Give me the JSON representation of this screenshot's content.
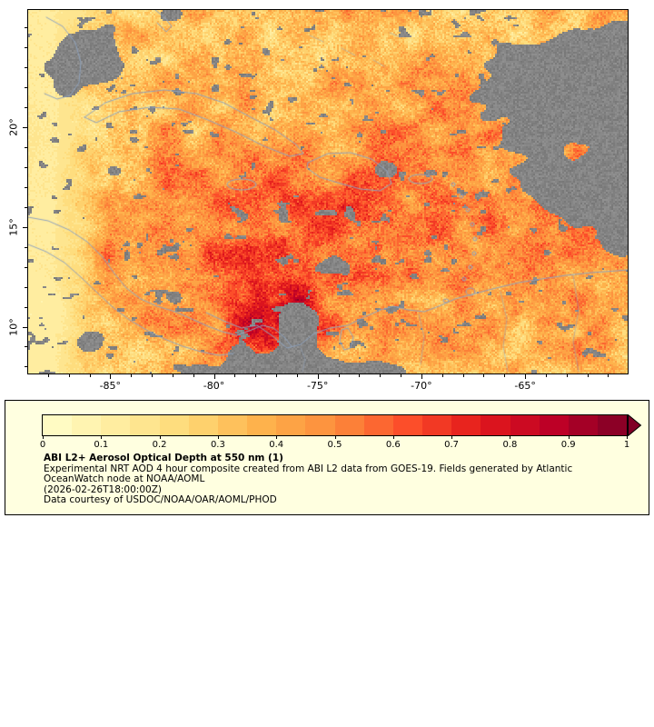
{
  "map": {
    "lat_ticks": [
      {
        "label": "20°",
        "lat": 20
      },
      {
        "label": "15°",
        "lat": 15
      },
      {
        "label": "10°",
        "lat": 10
      }
    ],
    "lon_ticks": [
      {
        "label": "-85°",
        "lon": -85
      },
      {
        "label": "-80°",
        "lon": -80
      },
      {
        "label": "-75°",
        "lon": -75
      },
      {
        "label": "-70°",
        "lon": -70
      },
      {
        "label": "-65°",
        "lon": -65
      }
    ],
    "colors": {
      "no_data_gray": "#7F7F7F",
      "coastline": "#8FA3BE",
      "frame": "#000000"
    }
  },
  "legend": {
    "background": "#FFFFE0",
    "segments": 20,
    "tick_labels": [
      "0",
      "0.1",
      "0.2",
      "0.3",
      "0.4",
      "0.5",
      "0.6",
      "0.7",
      "0.8",
      "0.9",
      "1"
    ],
    "colormap": [
      "#FFFFCC",
      "#FFEDA0",
      "#FED976",
      "#FEB24C",
      "#FD8D3C",
      "#FC4E2A",
      "#E31A1C",
      "#BD0026",
      "#800026"
    ],
    "title": "ABI L2+ Aerosol Optical Depth at 550 nm (1)",
    "lines": [
      "Experimental NRT AOD 4 hour composite created from ABI L2 data from GOES-19. Fields generated by Atlantic",
      "OceanWatch node at NOAA/AOML",
      "(2026-02-26T18:00:00Z)",
      "Data courtesy of USDOC/NOAA/OAR/AOML/PHOD"
    ]
  }
}
